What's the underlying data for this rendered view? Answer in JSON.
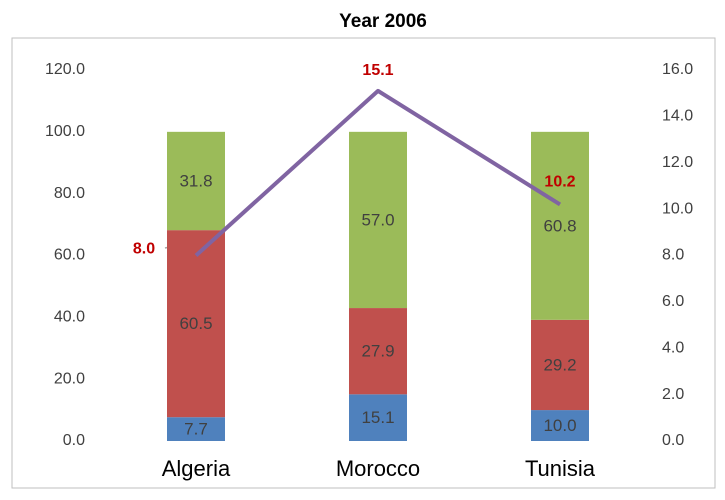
{
  "chart_data": {
    "type": "bar",
    "stacked": true,
    "title": "Year 2006",
    "categories": [
      "Algeria",
      "Morocco",
      "Tunisia"
    ],
    "series": [
      {
        "color": "#4f81bd",
        "values": [
          7.7,
          15.1,
          10.0
        ],
        "value_labels": [
          "7.7",
          "15.1",
          "10.0"
        ]
      },
      {
        "color": "#c0504d",
        "values": [
          60.5,
          27.9,
          29.2
        ],
        "value_labels": [
          "60.5",
          "27.9",
          "29.2"
        ]
      },
      {
        "color": "#9bbb59",
        "values": [
          31.8,
          57.0,
          60.8
        ],
        "value_labels": [
          "31.8",
          "57.0",
          "60.8"
        ]
      },
      {
        "type": "line",
        "axis": "y2",
        "color": "#8064a2",
        "label_color": "#c00000",
        "values": [
          8.0,
          15.1,
          10.2
        ],
        "value_labels": [
          "8.0",
          "15.1",
          "10.2"
        ]
      }
    ],
    "ylim": [
      0,
      120
    ],
    "yticks": [
      {
        "value": 0,
        "label": "0.0"
      },
      {
        "value": 20,
        "label": "20.0"
      },
      {
        "value": 40,
        "label": "40.0"
      },
      {
        "value": 60,
        "label": "60.0"
      },
      {
        "value": 80,
        "label": "80.0"
      },
      {
        "value": 100,
        "label": "100.0"
      },
      {
        "value": 120,
        "label": "120.0"
      }
    ],
    "y2lim": [
      0,
      16
    ],
    "y2ticks": [
      {
        "value": 0,
        "label": "0.0"
      },
      {
        "value": 2,
        "label": "2.0"
      },
      {
        "value": 4,
        "label": "4.0"
      },
      {
        "value": 6,
        "label": "6.0"
      },
      {
        "value": 8,
        "label": "8.0"
      },
      {
        "value": 10,
        "label": "10.0"
      },
      {
        "value": 12,
        "label": "12.0"
      },
      {
        "value": 14,
        "label": "14.0"
      },
      {
        "value": 16,
        "label": "16.0"
      }
    ],
    "grid": false
  }
}
